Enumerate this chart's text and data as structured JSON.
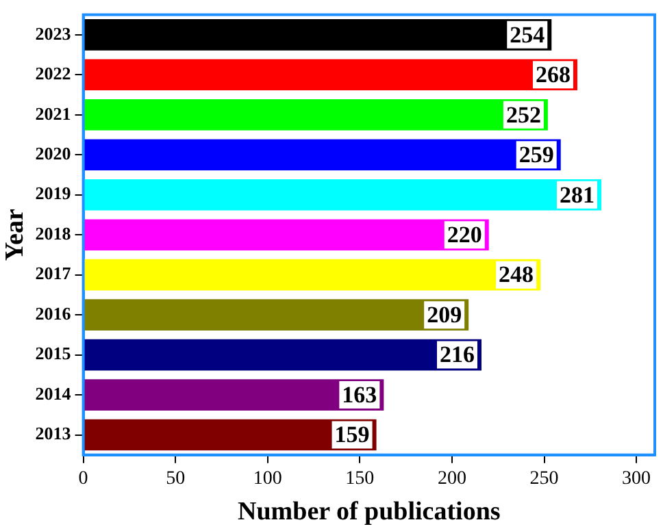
{
  "chart_data": {
    "type": "bar",
    "orientation": "horizontal",
    "xlabel": "Number of publications",
    "ylabel": "Year",
    "categories": [
      "2023",
      "2022",
      "2021",
      "2020",
      "2019",
      "2018",
      "2017",
      "2016",
      "2015",
      "2014",
      "2013"
    ],
    "values": [
      254,
      268,
      252,
      259,
      281,
      220,
      248,
      209,
      216,
      163,
      159
    ],
    "colors": [
      "#000000",
      "#ff0000",
      "#00ff00",
      "#0000ff",
      "#00ffff",
      "#ff00ff",
      "#ffff00",
      "#808000",
      "#000080",
      "#800080",
      "#800000"
    ],
    "xlim": [
      0,
      310
    ],
    "xticks": [
      0,
      50,
      100,
      150,
      200,
      250,
      300
    ],
    "data_labels": true,
    "grid": false,
    "legend": false
  }
}
